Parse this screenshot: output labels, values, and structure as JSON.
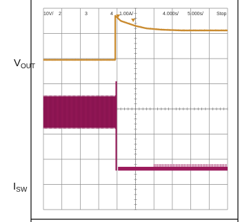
{
  "chart_data": {
    "type": "line",
    "title": "",
    "grid": true,
    "header": {
      "ch1": "10V/",
      "ch2": "2",
      "ch3": "3",
      "ch4": "4",
      "ch4_scale": "1.00A/",
      "time_div": "4.000s/",
      "sample": "5.000s/",
      "status": "Stop"
    },
    "header_colors": {
      "ch1": "#444444",
      "ch2": "#4caf50",
      "ch3": "#6a7fd6",
      "ch4": "#c2185b",
      "scale": "#444444"
    },
    "trace_labels": {
      "vout_main": "V",
      "vout_sub": "OUT",
      "isw_main": "I",
      "isw_sub": "SW"
    },
    "x_divisions": 10,
    "y_divisions": 8,
    "step_at_div": 3.9,
    "series": [
      {
        "name": "V",
        "color": "#c98a2e",
        "x": [
          0,
          3.9,
          3.9,
          4.2,
          4.6,
          5.0,
          5.6,
          6.4,
          7.5,
          9.0,
          10.0
        ],
        "y": [
          5.95,
          5.95,
          7.7,
          7.5,
          7.4,
          7.3,
          7.2,
          7.15,
          7.12,
          7.12,
          7.12
        ]
      },
      {
        "name": "I",
        "color": "#9b1a5c",
        "x": [
          0,
          3.95,
          3.95,
          4.05,
          10.0
        ],
        "y_upper": [
          4.5,
          4.5,
          5.1,
          1.7,
          1.7
        ],
        "y_lower": [
          3.25,
          3.25,
          1.55,
          1.55,
          1.55
        ]
      }
    ]
  }
}
